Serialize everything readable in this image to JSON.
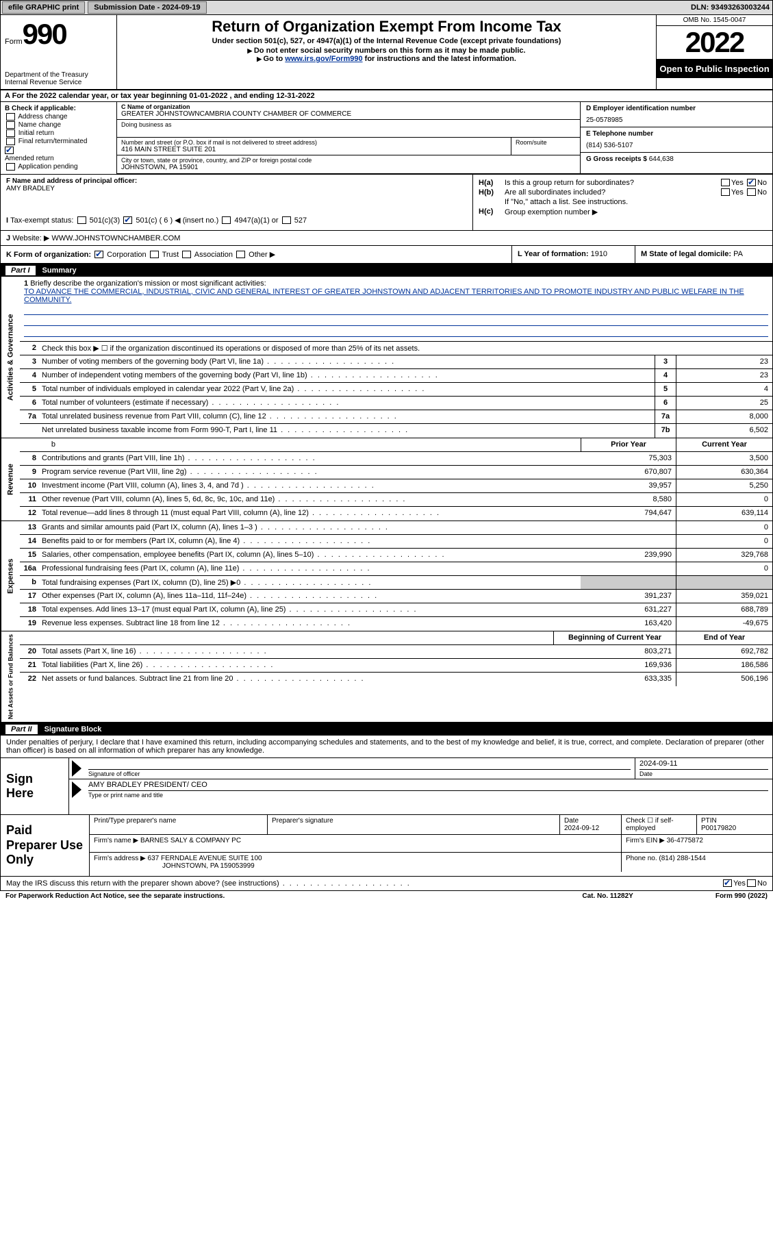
{
  "topbar": {
    "efile": "efile GRAPHIC print",
    "submission_label": "Submission Date - 2024-09-19",
    "dln_label": "DLN: 93493263003244"
  },
  "header": {
    "form_word": "Form",
    "form_num": "990",
    "dept": "Department of the Treasury",
    "irs": "Internal Revenue Service",
    "title": "Return of Organization Exempt From Income Tax",
    "subtitle": "Under section 501(c), 527, or 4947(a)(1) of the Internal Revenue Code (except private foundations)",
    "note1": "Do not enter social security numbers on this form as it may be made public.",
    "note2_pre": "Go to ",
    "note2_link": "www.irs.gov/Form990",
    "note2_post": " for instructions and the latest information.",
    "omb": "OMB No. 1545-0047",
    "year": "2022",
    "open": "Open to Public Inspection"
  },
  "lineA": "For the 2022 calendar year, or tax year beginning 01-01-2022   , and ending 12-31-2022",
  "sectionB": {
    "label": "B Check if applicable:",
    "items": [
      "Address change",
      "Name change",
      "Initial return",
      "Final return/terminated",
      "Amended return",
      "Application pending"
    ],
    "checked_index": 4
  },
  "sectionC": {
    "name_lbl": "C Name of organization",
    "name": "GREATER JOHNSTOWNCAMBRIA COUNTY CHAMBER OF COMMERCE",
    "dba_lbl": "Doing business as",
    "dba": "",
    "addr_lbl": "Number and street (or P.O. box if mail is not delivered to street address)",
    "room_lbl": "Room/suite",
    "addr": "416 MAIN STREET SUITE 201",
    "city_lbl": "City or town, state or province, country, and ZIP or foreign postal code",
    "city": "JOHNSTOWN, PA  15901"
  },
  "sectionD": {
    "ein_lbl": "D Employer identification number",
    "ein": "25-0578985",
    "tel_lbl": "E Telephone number",
    "tel": "(814) 536-5107",
    "gross_lbl": "G Gross receipts $",
    "gross": "644,638"
  },
  "sectionF": {
    "lbl": "F  Name and address of principal officer:",
    "name": "AMY BRADLEY"
  },
  "sectionH": {
    "a_lbl": "H(a)",
    "a_txt": "Is this a group return for subordinates?",
    "b_lbl": "H(b)",
    "b_txt": "Are all subordinates included?",
    "b_note": "If \"No,\" attach a list. See instructions.",
    "c_lbl": "H(c)",
    "c_txt": "Group exemption number ▶",
    "yes": "Yes",
    "no": "No"
  },
  "sectionI": {
    "lbl": "Tax-exempt status:",
    "o1": "501(c)(3)",
    "o2": "501(c) ( 6 ) ◀ (insert no.)",
    "o3": "4947(a)(1) or",
    "o4": "527"
  },
  "sectionJ": {
    "lbl": "Website: ▶",
    "val": "WWW.JOHNSTOWNCHAMBER.COM"
  },
  "sectionK": {
    "lbl": "K Form of organization:",
    "opts": [
      "Corporation",
      "Trust",
      "Association",
      "Other ▶"
    ]
  },
  "sectionL": {
    "lbl": "L Year of formation:",
    "val": "1910"
  },
  "sectionM": {
    "lbl": "M State of legal domicile:",
    "val": "PA"
  },
  "part1": {
    "label": "Part I",
    "title": "Summary"
  },
  "vtabs": {
    "ag": "Activities & Governance",
    "rev": "Revenue",
    "exp": "Expenses",
    "na": "Net Assets or Fund Balances"
  },
  "summary": {
    "q1": "Briefly describe the organization's mission or most significant activities:",
    "mission": "TO ADVANCE THE COMMERCIAL, INDUSTRIAL, CIVIC AND GENERAL INTEREST OF GREATER JOHNSTOWN AND ADJACENT TERRITORIES AND TO PROMOTE INDUSTRY AND PUBLIC WELFARE IN THE COMMUNITY.",
    "q2": "Check this box ▶ ☐  if the organization discontinued its operations or disposed of more than 25% of its net assets.",
    "rows_ag": [
      {
        "n": "3",
        "d": "Number of voting members of the governing body (Part VI, line 1a)",
        "c": "3",
        "v": "23"
      },
      {
        "n": "4",
        "d": "Number of independent voting members of the governing body (Part VI, line 1b)",
        "c": "4",
        "v": "23"
      },
      {
        "n": "5",
        "d": "Total number of individuals employed in calendar year 2022 (Part V, line 2a)",
        "c": "5",
        "v": "4"
      },
      {
        "n": "6",
        "d": "Total number of volunteers (estimate if necessary)",
        "c": "6",
        "v": "25"
      },
      {
        "n": "7a",
        "d": "Total unrelated business revenue from Part VIII, column (C), line 12",
        "c": "7a",
        "v": "8,000"
      },
      {
        "n": "",
        "d": "Net unrelated business taxable income from Form 990-T, Part I, line 11",
        "c": "7b",
        "v": "6,502"
      }
    ],
    "hdr_py": "Prior Year",
    "hdr_cy": "Current Year",
    "rows_rev": [
      {
        "n": "8",
        "d": "Contributions and grants (Part VIII, line 1h)",
        "py": "75,303",
        "cy": "3,500"
      },
      {
        "n": "9",
        "d": "Program service revenue (Part VIII, line 2g)",
        "py": "670,807",
        "cy": "630,364"
      },
      {
        "n": "10",
        "d": "Investment income (Part VIII, column (A), lines 3, 4, and 7d )",
        "py": "39,957",
        "cy": "5,250"
      },
      {
        "n": "11",
        "d": "Other revenue (Part VIII, column (A), lines 5, 6d, 8c, 9c, 10c, and 11e)",
        "py": "8,580",
        "cy": "0"
      },
      {
        "n": "12",
        "d": "Total revenue—add lines 8 through 11 (must equal Part VIII, column (A), line 12)",
        "py": "794,647",
        "cy": "639,114"
      }
    ],
    "rows_exp": [
      {
        "n": "13",
        "d": "Grants and similar amounts paid (Part IX, column (A), lines 1–3 )",
        "py": "",
        "cy": "0"
      },
      {
        "n": "14",
        "d": "Benefits paid to or for members (Part IX, column (A), line 4)",
        "py": "",
        "cy": "0"
      },
      {
        "n": "15",
        "d": "Salaries, other compensation, employee benefits (Part IX, column (A), lines 5–10)",
        "py": "239,990",
        "cy": "329,768"
      },
      {
        "n": "16a",
        "d": "Professional fundraising fees (Part IX, column (A), line 11e)",
        "py": "",
        "cy": "0"
      },
      {
        "n": "b",
        "d": "Total fundraising expenses (Part IX, column (D), line 25) ▶0",
        "py": "grey",
        "cy": "grey"
      },
      {
        "n": "17",
        "d": "Other expenses (Part IX, column (A), lines 11a–11d, 11f–24e)",
        "py": "391,237",
        "cy": "359,021"
      },
      {
        "n": "18",
        "d": "Total expenses. Add lines 13–17 (must equal Part IX, column (A), line 25)",
        "py": "631,227",
        "cy": "688,789"
      },
      {
        "n": "19",
        "d": "Revenue less expenses. Subtract line 18 from line 12",
        "py": "163,420",
        "cy": "-49,675"
      }
    ],
    "hdr_boy": "Beginning of Current Year",
    "hdr_eoy": "End of Year",
    "rows_na": [
      {
        "n": "20",
        "d": "Total assets (Part X, line 16)",
        "py": "803,271",
        "cy": "692,782"
      },
      {
        "n": "21",
        "d": "Total liabilities (Part X, line 26)",
        "py": "169,936",
        "cy": "186,586"
      },
      {
        "n": "22",
        "d": "Net assets or fund balances. Subtract line 21 from line 20",
        "py": "633,335",
        "cy": "506,196"
      }
    ]
  },
  "part2": {
    "label": "Part II",
    "title": "Signature Block"
  },
  "sig": {
    "decl": "Under penalties of perjury, I declare that I have examined this return, including accompanying schedules and statements, and to the best of my knowledge and belief, it is true, correct, and complete. Declaration of preparer (other than officer) is based on all information of which preparer has any knowledge.",
    "sign_here": "Sign Here",
    "sig_officer": "Signature of officer",
    "date": "Date",
    "date_val": "2024-09-11",
    "name_title": "AMY BRADLEY  PRESIDENT/ CEO",
    "name_title_lbl": "Type or print name and title"
  },
  "paid": {
    "label": "Paid Preparer Use Only",
    "r1": {
      "c1_lbl": "Print/Type preparer's name",
      "c1": "",
      "c2_lbl": "Preparer's signature",
      "c2": "",
      "c3_lbl": "Date",
      "c3": "2024-09-12",
      "c4_lbl": "Check ☐ if self-employed",
      "c5_lbl": "PTIN",
      "c5": "P00179820"
    },
    "r2": {
      "lbl": "Firm's name    ▶",
      "val": "BARNES SALY & COMPANY PC",
      "ein_lbl": "Firm's EIN ▶",
      "ein": "36-4775872"
    },
    "r3": {
      "lbl": "Firm's address ▶",
      "val1": "637 FERNDALE AVENUE SUITE 100",
      "val2": "JOHNSTOWN, PA  159053999",
      "ph_lbl": "Phone no.",
      "ph": "(814) 288-1544"
    }
  },
  "footer": {
    "q": "May the IRS discuss this return with the preparer shown above? (see instructions)",
    "yes": "Yes",
    "no": "No",
    "pra": "For Paperwork Reduction Act Notice, see the separate instructions.",
    "cat": "Cat. No. 11282Y",
    "form": "Form 990 (2022)"
  }
}
